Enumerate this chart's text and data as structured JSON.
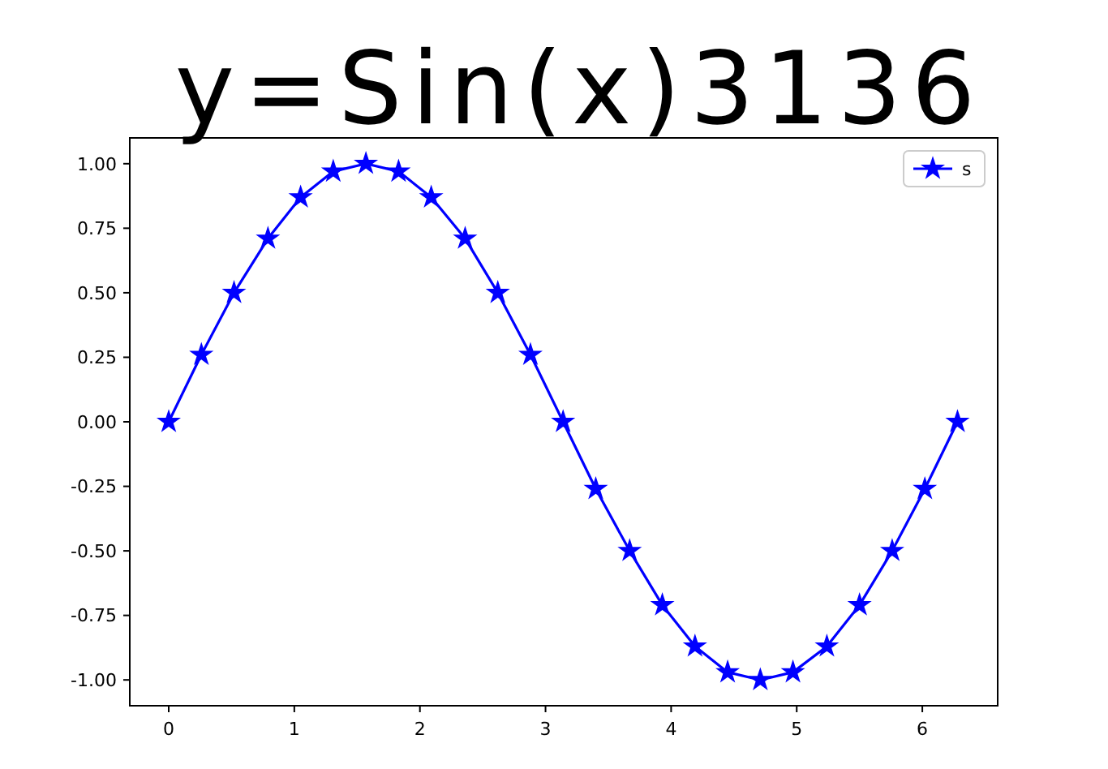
{
  "chart_data": {
    "type": "line",
    "title": "y=Sin(x)3136",
    "x": [
      0,
      0.26,
      0.52,
      0.79,
      1.05,
      1.31,
      1.57,
      1.83,
      2.09,
      2.36,
      2.62,
      2.88,
      3.14,
      3.4,
      3.67,
      3.93,
      4.19,
      4.45,
      4.71,
      4.97,
      5.24,
      5.5,
      5.76,
      6.02,
      6.28
    ],
    "series": [
      {
        "name": "s",
        "color": "#0000ff",
        "values": [
          0,
          0.26,
          0.5,
          0.71,
          0.87,
          0.97,
          1,
          0.97,
          0.87,
          0.71,
          0.5,
          0.26,
          0,
          -0.26,
          -0.5,
          -0.71,
          -0.87,
          -0.97,
          -1,
          -0.97,
          -0.87,
          -0.71,
          -0.5,
          -0.26,
          0
        ]
      }
    ],
    "xlim": [
      -0.31,
      6.6
    ],
    "xticks": [
      0,
      1,
      2,
      3,
      4,
      5,
      6
    ],
    "ylim": [
      -1.1,
      1.1
    ],
    "yticks": [
      {
        "value": -1,
        "label": "-1.00"
      },
      {
        "value": -0.75,
        "label": "-0.75"
      },
      {
        "value": -0.5,
        "label": "-0.50"
      },
      {
        "value": -0.25,
        "label": "-0.25"
      },
      {
        "value": 0,
        "label": "0.00"
      },
      {
        "value": 0.25,
        "label": "0.25"
      },
      {
        "value": 0.5,
        "label": "0.50"
      },
      {
        "value": 0.75,
        "label": "0.75"
      },
      {
        "value": 1,
        "label": "1.00"
      }
    ],
    "legend": "top right",
    "marker": "star",
    "line_style": "solid",
    "grid": false
  }
}
